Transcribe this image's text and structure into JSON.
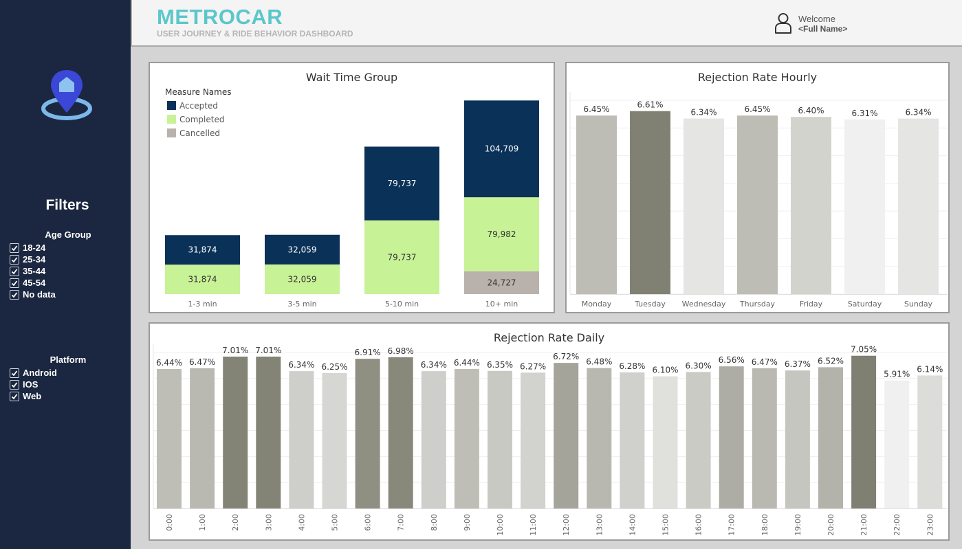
{
  "header": {
    "brand": "METROCAR",
    "subtitle": "USER JOURNEY & RIDE BEHAVIOR DASHBOARD",
    "welcome": "Welcome",
    "user_name": "<Full Name>"
  },
  "sidebar": {
    "logo_icon": "map-pin-icon",
    "filters_title": "Filters",
    "age_group": {
      "title": "Age Group",
      "options": [
        "18-24",
        "25-34",
        "35-44",
        "45-54",
        "No data"
      ],
      "checked": [
        true,
        true,
        true,
        true,
        true
      ]
    },
    "platform": {
      "title": "Platform",
      "options": [
        "Android",
        "IOS",
        "Web"
      ],
      "checked": [
        true,
        true,
        true
      ]
    }
  },
  "colors": {
    "sidebar": "#1b2740",
    "brand": "#5bc7ca",
    "accepted": "#0a3158",
    "completed": "#c8f296",
    "cancelled": "#b9b1ab"
  },
  "chart_data": [
    {
      "type": "bar",
      "stacked": true,
      "title": "Wait Time Group",
      "legend_title": "Measure Names",
      "legend_position": "top-left",
      "categories": [
        "1-3 min",
        "3-5 min",
        "5-10 min",
        "10+ min"
      ],
      "series": [
        {
          "name": "Cancelled",
          "color": "#b9b1ab",
          "values": [
            0,
            0,
            0,
            24727
          ],
          "labels": [
            "",
            "",
            "",
            "24,727"
          ]
        },
        {
          "name": "Completed",
          "color": "#c8f296",
          "values": [
            31874,
            32059,
            79737,
            79982
          ],
          "labels": [
            "31,874",
            "32,059",
            "79,737",
            "79,982"
          ]
        },
        {
          "name": "Accepted",
          "color": "#0a3158",
          "values": [
            31874,
            32059,
            79737,
            104709
          ],
          "labels": [
            "31,874",
            "32,059",
            "79,737",
            "104,709"
          ]
        }
      ],
      "legend_order": [
        "Accepted",
        "Completed",
        "Cancelled"
      ],
      "ylim": [
        0,
        220000
      ]
    },
    {
      "type": "bar",
      "title": "Rejection Rate Hourly",
      "categories": [
        "Monday",
        "Tuesday",
        "Wednesday",
        "Thursday",
        "Friday",
        "Saturday",
        "Sunday"
      ],
      "values": [
        6.45,
        6.61,
        6.34,
        6.45,
        6.4,
        6.31,
        6.34
      ],
      "labels": [
        "6.45%",
        "6.61%",
        "6.34%",
        "6.45%",
        "6.40%",
        "6.31%",
        "6.34%"
      ],
      "colors": [
        "#bdbdb5",
        "#818173",
        "#e5e5e3",
        "#bdbdb5",
        "#d3d3ce",
        "#f0f0f0",
        "#e5e5e3"
      ],
      "ylim": [
        0,
        7.0
      ],
      "grid": true
    },
    {
      "type": "bar",
      "title": "Rejection Rate Daily",
      "categories": [
        "0:00",
        "1:00",
        "2:00",
        "3:00",
        "4:00",
        "5:00",
        "6:00",
        "7:00",
        "8:00",
        "9:00",
        "10:00",
        "11:00",
        "12:00",
        "13:00",
        "14:00",
        "15:00",
        "16:00",
        "17:00",
        "18:00",
        "19:00",
        "20:00",
        "21:00",
        "22:00",
        "23:00"
      ],
      "values": [
        6.44,
        6.47,
        7.01,
        7.01,
        6.34,
        6.25,
        6.91,
        6.98,
        6.34,
        6.44,
        6.35,
        6.27,
        6.72,
        6.48,
        6.28,
        6.1,
        6.3,
        6.56,
        6.47,
        6.37,
        6.52,
        7.05,
        5.91,
        6.14
      ],
      "labels": [
        "6.44%",
        "6.47%",
        "7.01%",
        "7.01%",
        "6.34%",
        "6.25%",
        "6.91%",
        "6.98%",
        "6.34%",
        "6.44%",
        "6.35%",
        "6.27%",
        "6.72%",
        "6.48%",
        "6.28%",
        "6.10%",
        "6.30%",
        "6.56%",
        "6.47%",
        "6.37%",
        "6.52%",
        "7.05%",
        "5.91%",
        "6.14%"
      ],
      "colors": [
        "#bebeb7",
        "#b9b9b2",
        "#848476",
        "#848476",
        "#cececa",
        "#d6d6d2",
        "#8f8f82",
        "#88887b",
        "#cececa",
        "#bebeb7",
        "#c9c9c4",
        "#d2d2ce",
        "#a4a49a",
        "#b8b8b0",
        "#d0d0cc",
        "#e0e0dc",
        "#cbcbc6",
        "#adada5",
        "#b9b9b2",
        "#c6c6c1",
        "#b3b3ab",
        "#7f7f72",
        "#f0f0f0",
        "#dcdcd8"
      ],
      "ylim": [
        0,
        7.2
      ],
      "grid": true
    }
  ]
}
